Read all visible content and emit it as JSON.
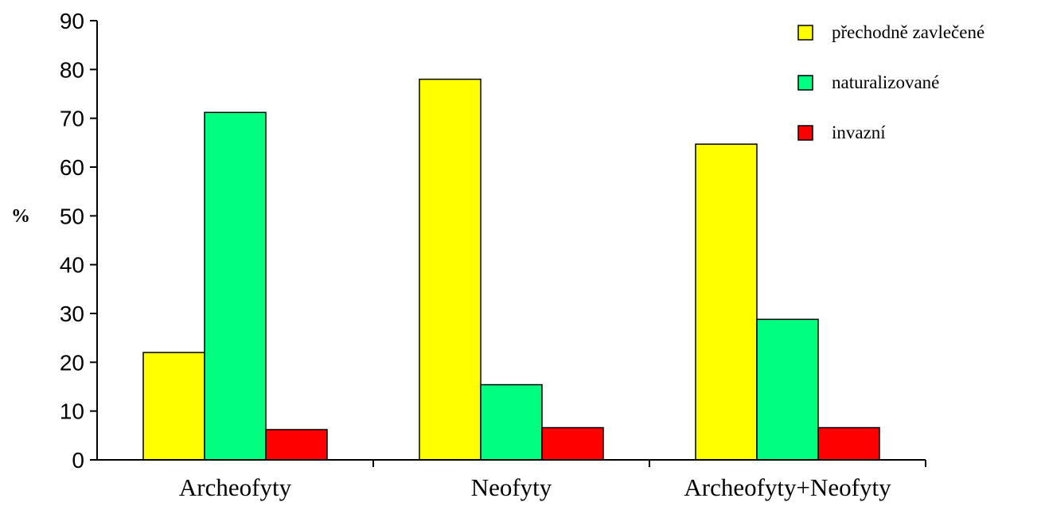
{
  "chart_data": {
    "type": "bar",
    "title": "",
    "xlabel": "",
    "ylabel": "%",
    "ylim": [
      0,
      90
    ],
    "yticks": [
      0,
      10,
      20,
      30,
      40,
      50,
      60,
      70,
      80,
      90
    ],
    "grid": false,
    "legend_position": "top-right",
    "categories": [
      "Archeofyty",
      "Neofyty",
      "Archeofyty+Neofyty"
    ],
    "series": [
      {
        "name": "přechodně zavlečené",
        "color": "#ffff00",
        "values": [
          22,
          78,
          64.7
        ]
      },
      {
        "name": "naturalizované",
        "color": "#00ff80",
        "values": [
          71.2,
          15.4,
          28.8
        ]
      },
      {
        "name": "invazní",
        "color": "#ff0000",
        "values": [
          6.2,
          6.6,
          6.6
        ]
      }
    ]
  }
}
